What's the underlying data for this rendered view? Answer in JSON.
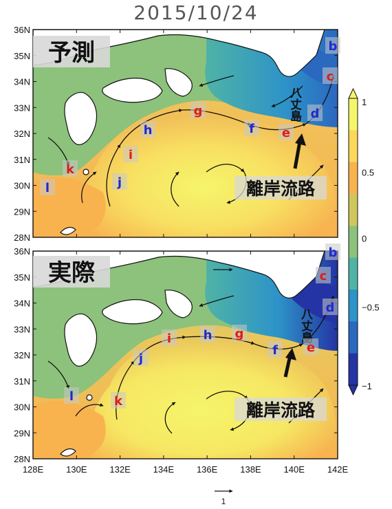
{
  "figure": {
    "date": "2015/10/24",
    "panels": [
      {
        "title": "予測",
        "offshore_label": "離岸流路",
        "island_label": "八丈島",
        "markers": [
          {
            "letter": "b",
            "color": "blue"
          },
          {
            "letter": "c",
            "color": "red"
          },
          {
            "letter": "d",
            "color": "blue"
          },
          {
            "letter": "e",
            "color": "red"
          },
          {
            "letter": "f",
            "color": "blue"
          },
          {
            "letter": "g",
            "color": "red"
          },
          {
            "letter": "h",
            "color": "blue"
          },
          {
            "letter": "i",
            "color": "red"
          },
          {
            "letter": "j",
            "color": "blue"
          },
          {
            "letter": "k",
            "color": "red"
          },
          {
            "letter": "l",
            "color": "blue"
          }
        ]
      },
      {
        "title": "実際",
        "offshore_label": "離岸流路",
        "island_label": "八丈島",
        "markers": [
          {
            "letter": "b",
            "color": "blue"
          },
          {
            "letter": "c",
            "color": "red"
          },
          {
            "letter": "d",
            "color": "blue"
          },
          {
            "letter": "e",
            "color": "red"
          },
          {
            "letter": "f",
            "color": "blue"
          },
          {
            "letter": "g",
            "color": "red"
          },
          {
            "letter": "h",
            "color": "blue"
          },
          {
            "letter": "i",
            "color": "red"
          },
          {
            "letter": "j",
            "color": "blue"
          },
          {
            "letter": "k",
            "color": "red"
          },
          {
            "letter": "l",
            "color": "blue"
          }
        ]
      }
    ],
    "lat_ticks": [
      "36N",
      "35N",
      "34N",
      "33N",
      "32N",
      "31N",
      "30N",
      "29N",
      "28N"
    ],
    "lon_ticks": [
      "128E",
      "130E",
      "132E",
      "134E",
      "136E",
      "138E",
      "140E",
      "142E"
    ],
    "colorbar": {
      "ticks": [
        "1",
        "0.5",
        "0",
        "−0.5",
        "−1"
      ],
      "colors": [
        "#f5f56a",
        "#fbd85a",
        "#f8b34f",
        "#cfc75e",
        "#8cc27b",
        "#4fb3a6",
        "#2d93c8",
        "#2b68c0",
        "#2434a4"
      ]
    },
    "reference_vector_label": "1",
    "marker_colors": {
      "red": "#dd1c1c",
      "blue": "#1c2bd1"
    }
  }
}
